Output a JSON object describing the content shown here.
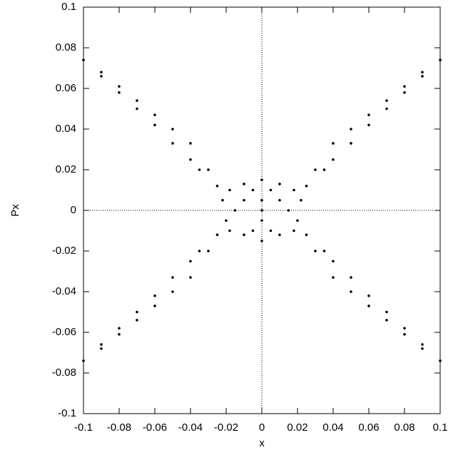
{
  "chart_data": {
    "type": "scatter",
    "x_label": "x",
    "y_label": "Px",
    "xlim": [
      -0.1,
      0.1
    ],
    "ylim": [
      -0.1,
      0.1
    ],
    "xticks": [
      -0.1,
      -0.08,
      -0.06,
      -0.04,
      -0.02,
      0,
      0.02,
      0.04,
      0.06,
      0.08,
      0.1
    ],
    "yticks": [
      -0.1,
      -0.08,
      -0.06,
      -0.04,
      -0.02,
      0,
      0.02,
      0.04,
      0.06,
      0.08,
      0.1
    ],
    "zero_lines": true,
    "color": "#000000",
    "x": [
      0.025,
      0.03,
      0.035,
      0.04,
      0.04,
      0.05,
      0.05,
      0.06,
      0.06,
      0.07,
      0.07,
      0.08,
      0.08,
      0.09,
      0.09,
      0.1,
      -0.025,
      -0.03,
      -0.035,
      -0.04,
      -0.04,
      -0.05,
      -0.05,
      -0.06,
      -0.06,
      -0.07,
      -0.07,
      -0.08,
      -0.08,
      -0.09,
      -0.09,
      -0.1,
      -0.025,
      -0.03,
      -0.035,
      -0.04,
      -0.04,
      -0.05,
      -0.05,
      -0.06,
      -0.06,
      -0.07,
      -0.07,
      -0.08,
      -0.08,
      -0.09,
      -0.09,
      -0.1,
      0.025,
      0.03,
      0.035,
      0.04,
      0.04,
      0.05,
      0.05,
      0.06,
      0.06,
      0.07,
      0.07,
      0.08,
      0.08,
      0.09,
      0.09,
      0.1,
      0,
      0.005,
      -0.005,
      0.01,
      -0.01,
      0.015,
      -0.015,
      0.02,
      -0.02,
      0.022,
      -0.022,
      0,
      0.005,
      -0.005,
      0.01,
      -0.01,
      0,
      0.01,
      -0.01,
      0.018,
      -0.018,
      0.018,
      -0.018,
      0,
      0
    ],
    "values": [
      0.012,
      0.02,
      0.02,
      0.025,
      0.033,
      0.033,
      0.04,
      0.042,
      0.047,
      0.05,
      0.054,
      0.058,
      0.061,
      0.066,
      0.068,
      0.074,
      0.012,
      0.02,
      0.02,
      0.025,
      0.033,
      0.033,
      0.04,
      0.042,
      0.047,
      0.05,
      0.054,
      0.058,
      0.061,
      0.066,
      0.068,
      0.074,
      -0.012,
      -0.02,
      -0.02,
      -0.025,
      -0.033,
      -0.033,
      -0.04,
      -0.042,
      -0.047,
      -0.05,
      -0.054,
      -0.058,
      -0.061,
      -0.066,
      -0.068,
      -0.074,
      -0.012,
      -0.02,
      -0.02,
      -0.025,
      -0.033,
      -0.033,
      -0.04,
      -0.042,
      -0.047,
      -0.05,
      -0.054,
      -0.058,
      -0.061,
      -0.066,
      -0.068,
      -0.074,
      0.015,
      0.01,
      0.01,
      0.005,
      0.005,
      0,
      0,
      -0.005,
      -0.005,
      0.005,
      0.005,
      -0.015,
      -0.01,
      -0.01,
      -0.012,
      -0.012,
      0,
      0.013,
      0.013,
      0.01,
      0.01,
      -0.01,
      -0.01,
      0.005,
      -0.005
    ]
  }
}
